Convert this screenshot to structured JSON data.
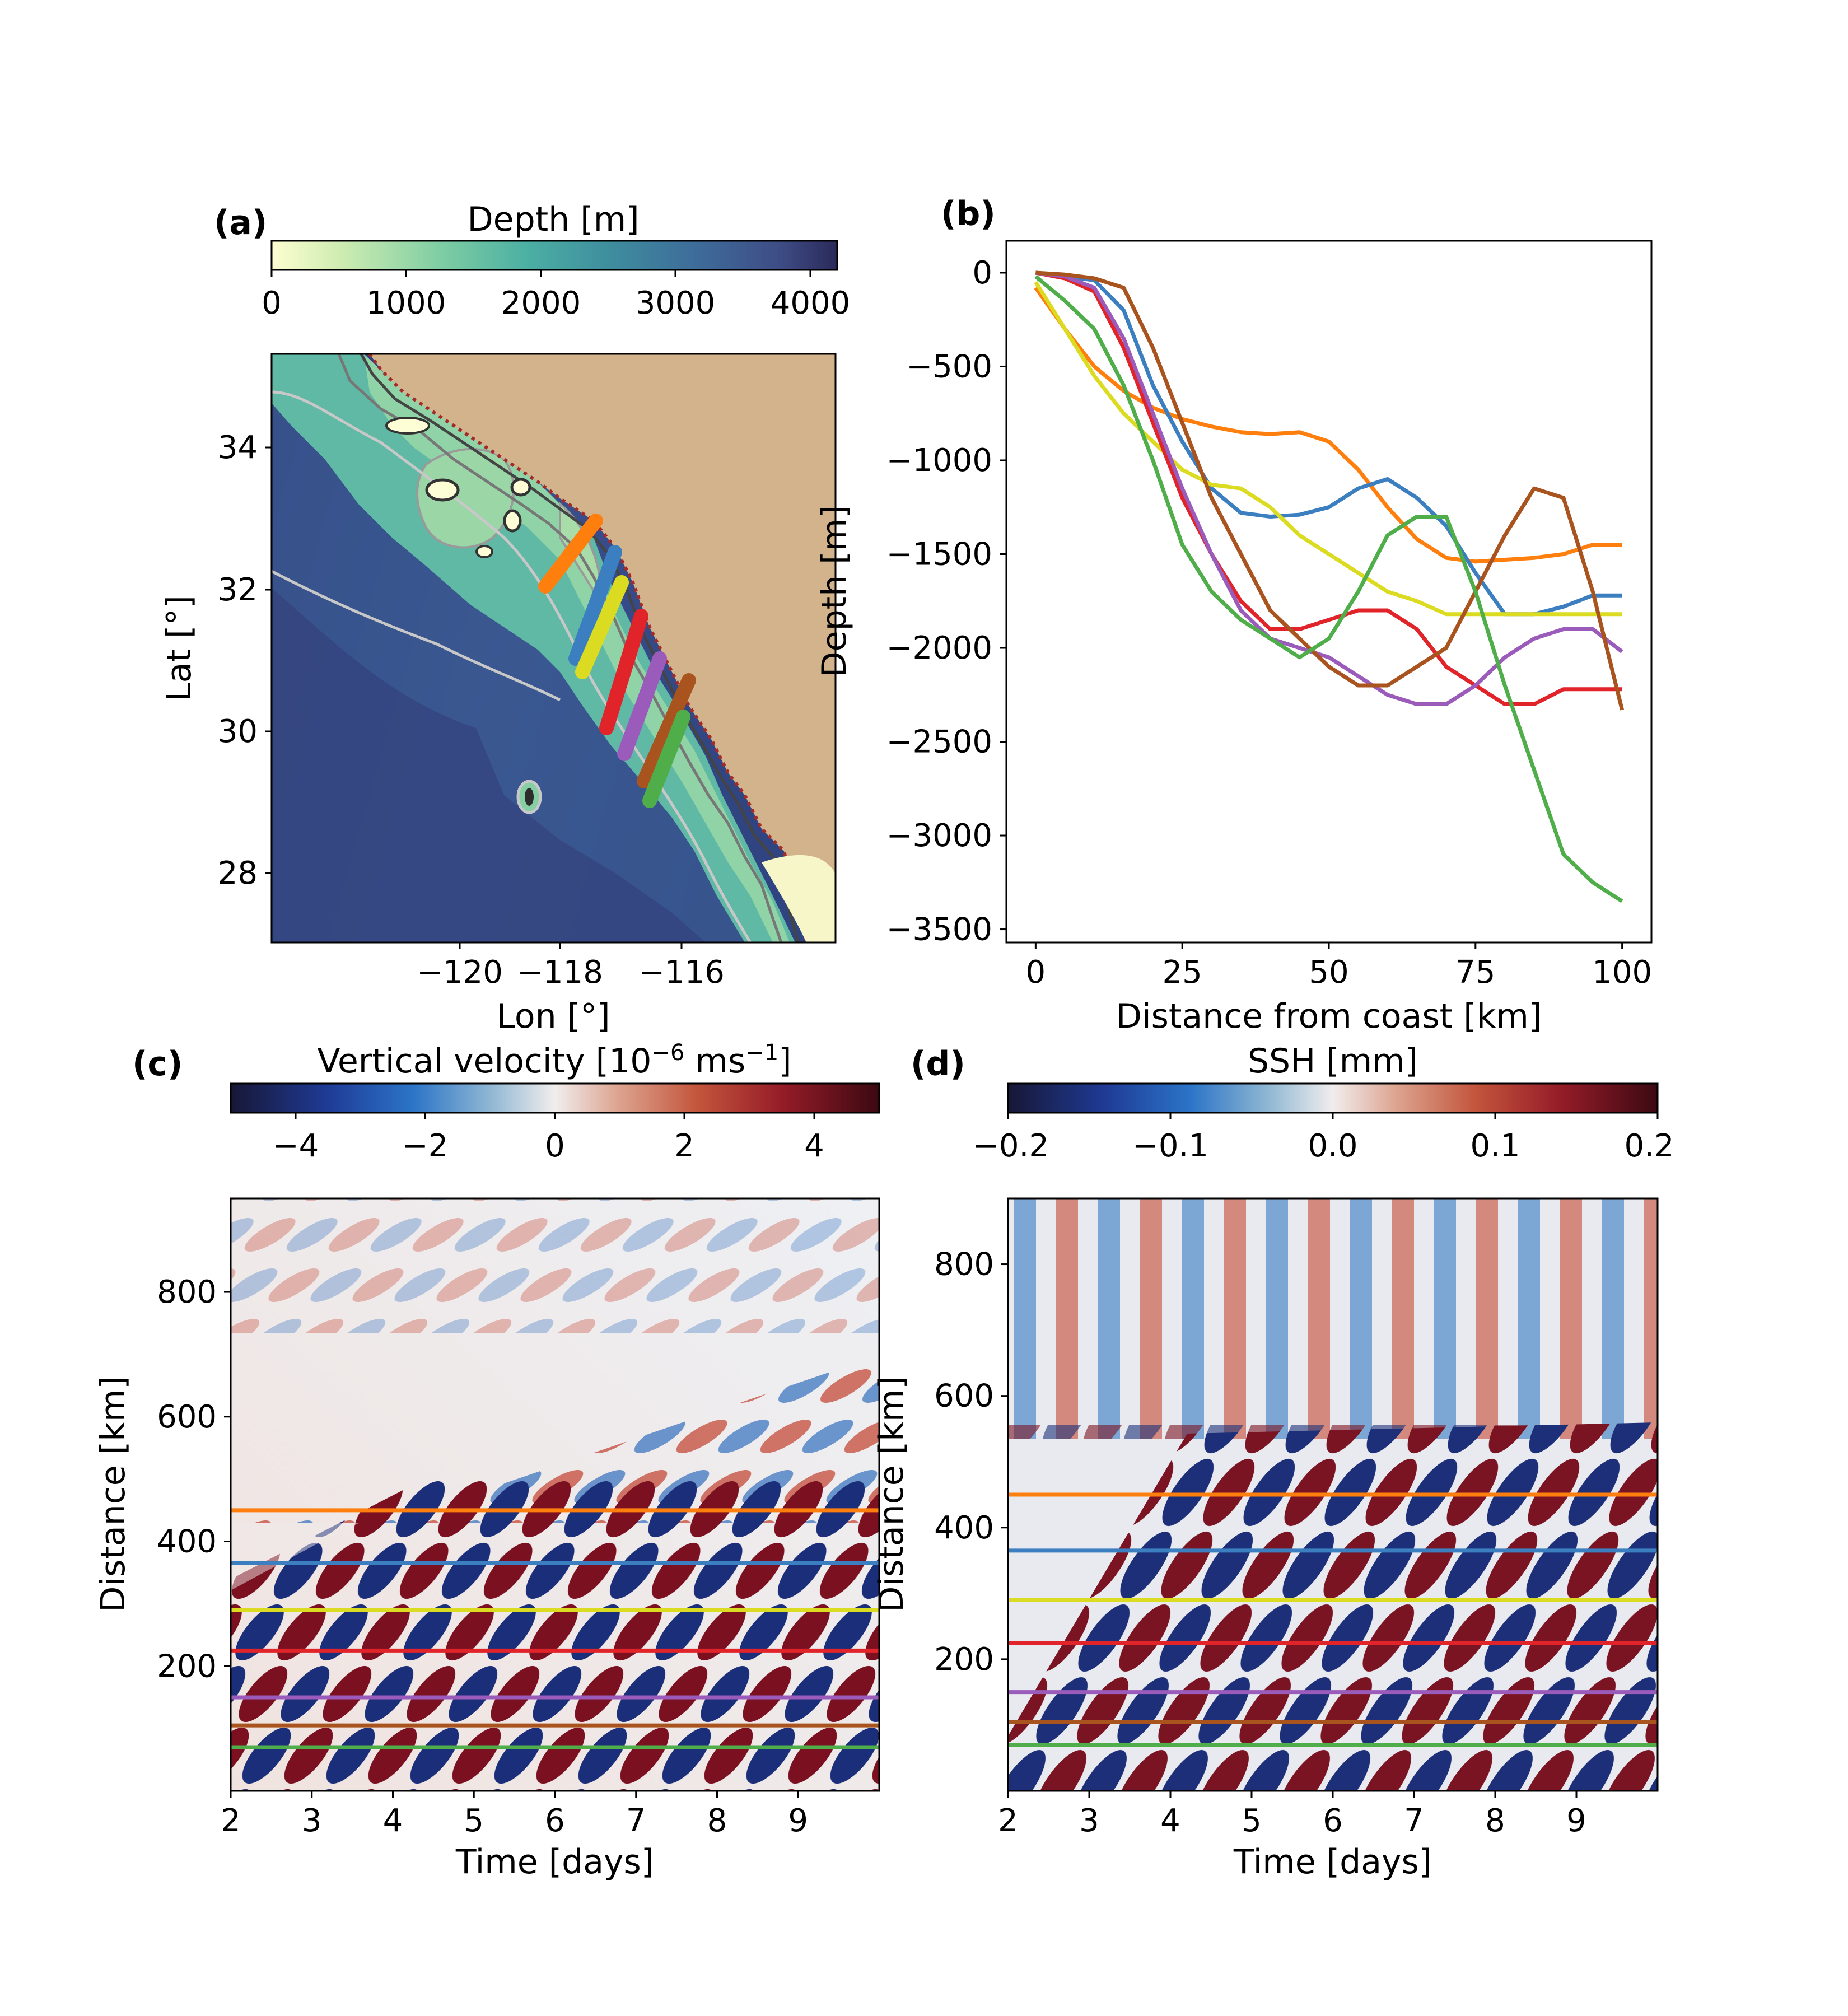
{
  "colors": {
    "line_orange": "#ff7f0e",
    "line_blue": "#3b7fc0",
    "line_yellow": "#dbdb22",
    "line_red": "#e0242a",
    "line_purple": "#9b5bbb",
    "line_brown": "#a9531e",
    "line_green": "#4fae4a",
    "land": "#d3b38c",
    "coast_dotted": "#a52a2a"
  },
  "panels": {
    "a": {
      "label": "(a)",
      "cbar_label": "Depth [m]",
      "cbar_ticks": [
        "0",
        "1000",
        "2000",
        "3000",
        "4000"
      ],
      "xlabel": "Lon [°]",
      "ylabel": "Lat [°]",
      "xticks": [
        "−120",
        "−118",
        "−116"
      ],
      "yticks": [
        "34",
        "32",
        "30",
        "28"
      ]
    },
    "b": {
      "label": "(b)",
      "xlabel": "Distance from coast [km]",
      "ylabel": "Depth [m]",
      "xticks": [
        "0",
        "25",
        "50",
        "75",
        "100"
      ],
      "yticks": [
        "0",
        "−500",
        "−1000",
        "−1500",
        "−2000",
        "−2500",
        "−3000",
        "−3500"
      ]
    },
    "c": {
      "label": "(c)",
      "cbar_label_main": "Vertical velocity  [10",
      "cbar_label_exp1": "−6",
      "cbar_label_mid": " ms",
      "cbar_label_exp2": "−1",
      "cbar_label_end": "]",
      "cbar_ticks": [
        "−4",
        "−2",
        "0",
        "2",
        "4"
      ],
      "xlabel": "Time [days]",
      "ylabel": "Distance [km]",
      "xticks": [
        "2",
        "3",
        "4",
        "5",
        "6",
        "7",
        "8",
        "9"
      ],
      "yticks": [
        "800",
        "600",
        "400",
        "200"
      ]
    },
    "d": {
      "label": "(d)",
      "cbar_label": "SSH  [mm]",
      "cbar_ticks": [
        "−0.2",
        "−0.1",
        "0.0",
        "0.1",
        "0.2"
      ],
      "xlabel": "Time [days]",
      "ylabel": "Distance [km]",
      "xticks": [
        "2",
        "3",
        "4",
        "5",
        "6",
        "7",
        "8",
        "9"
      ],
      "yticks": [
        "800",
        "600",
        "400",
        "200"
      ]
    }
  },
  "chart_data": [
    {
      "panel": "a",
      "type": "heatmap",
      "xlabel": "Lon [°]",
      "ylabel": "Lat [°]",
      "xlim": [
        -122.7,
        -114.7
      ],
      "ylim": [
        27,
        35.3
      ],
      "colorbar": {
        "label": "Depth [m]",
        "range": [
          0,
          4200
        ],
        "colormap": "deep"
      },
      "grid": false,
      "transects": [
        {
          "color": "orange",
          "start": [
            -118.2,
            32.0
          ],
          "end": [
            -117.1,
            33.1
          ]
        },
        {
          "color": "blue",
          "start": [
            -117.7,
            31.0
          ],
          "end": [
            -117.0,
            32.5
          ]
        },
        {
          "color": "yellow",
          "start": [
            -117.5,
            30.8
          ],
          "end": [
            -116.9,
            32.0
          ]
        },
        {
          "color": "red",
          "start": [
            -117.2,
            30.0
          ],
          "end": [
            -116.7,
            31.5
          ]
        },
        {
          "color": "purple",
          "start": [
            -116.9,
            29.7
          ],
          "end": [
            -116.4,
            31.0
          ]
        },
        {
          "color": "brown",
          "start": [
            -116.6,
            29.3
          ],
          "end": [
            -116.0,
            30.7
          ]
        },
        {
          "color": "green",
          "start": [
            -116.5,
            29.0
          ],
          "end": [
            -116.0,
            30.3
          ]
        }
      ]
    },
    {
      "panel": "b",
      "type": "line",
      "xlabel": "Distance from coast [km]",
      "ylabel": "Depth [m]",
      "xlim": [
        -5,
        105
      ],
      "ylim": [
        -3570,
        170
      ],
      "grid": false,
      "series": [
        {
          "color": "orange",
          "x": [
            0,
            5,
            10,
            15,
            20,
            25,
            30,
            35,
            40,
            45,
            50,
            55,
            60,
            65,
            70,
            75,
            80,
            85,
            90,
            95,
            100
          ],
          "y": [
            -80,
            -300,
            -500,
            -630,
            -720,
            -780,
            -820,
            -850,
            -860,
            -850,
            -900,
            -1050,
            -1250,
            -1420,
            -1520,
            -1540,
            -1530,
            -1520,
            -1500,
            -1450,
            -1450
          ]
        },
        {
          "color": "blue",
          "x": [
            0,
            5,
            10,
            15,
            20,
            25,
            30,
            35,
            40,
            45,
            50,
            55,
            60,
            65,
            70,
            75,
            80,
            85,
            90,
            95,
            100
          ],
          "y": [
            0,
            -20,
            -40,
            -200,
            -600,
            -900,
            -1150,
            -1280,
            -1300,
            -1290,
            -1250,
            -1150,
            -1100,
            -1200,
            -1350,
            -1600,
            -1820,
            -1820,
            -1780,
            -1720,
            -1720
          ]
        },
        {
          "color": "yellow",
          "x": [
            0,
            5,
            10,
            15,
            20,
            25,
            30,
            35,
            40,
            45,
            50,
            55,
            60,
            65,
            70,
            75,
            80,
            85,
            90,
            95,
            100
          ],
          "y": [
            -50,
            -300,
            -550,
            -750,
            -900,
            -1050,
            -1130,
            -1150,
            -1250,
            -1400,
            -1500,
            -1600,
            -1700,
            -1750,
            -1820,
            -1820,
            -1820,
            -1820,
            -1820,
            -1820,
            -1820
          ]
        },
        {
          "color": "red",
          "x": [
            0,
            5,
            10,
            15,
            20,
            25,
            30,
            35,
            40,
            45,
            50,
            55,
            60,
            65,
            70,
            75,
            80,
            85,
            90,
            95,
            100
          ],
          "y": [
            0,
            -30,
            -100,
            -400,
            -800,
            -1200,
            -1500,
            -1750,
            -1900,
            -1900,
            -1850,
            -1800,
            -1800,
            -1900,
            -2100,
            -2200,
            -2300,
            -2300,
            -2220,
            -2220,
            -2220
          ]
        },
        {
          "color": "purple",
          "x": [
            0,
            5,
            10,
            15,
            20,
            25,
            30,
            35,
            40,
            45,
            50,
            55,
            60,
            65,
            70,
            75,
            80,
            85,
            90,
            95,
            100
          ],
          "y": [
            0,
            -20,
            -80,
            -350,
            -750,
            -1150,
            -1500,
            -1800,
            -1950,
            -2000,
            -2050,
            -2150,
            -2250,
            -2300,
            -2300,
            -2200,
            -2050,
            -1950,
            -1900,
            -1900,
            -2020
          ]
        },
        {
          "color": "brown",
          "x": [
            0,
            5,
            10,
            15,
            20,
            25,
            30,
            35,
            40,
            45,
            50,
            55,
            60,
            65,
            70,
            75,
            80,
            85,
            90,
            95,
            100
          ],
          "y": [
            0,
            -10,
            -30,
            -80,
            -400,
            -800,
            -1200,
            -1500,
            -1800,
            -1950,
            -2100,
            -2200,
            -2200,
            -2100,
            -2000,
            -1700,
            -1400,
            -1150,
            -1200,
            -1700,
            -2330
          ]
        },
        {
          "color": "green",
          "x": [
            0,
            5,
            10,
            15,
            20,
            25,
            30,
            35,
            40,
            45,
            50,
            55,
            60,
            65,
            70,
            75,
            80,
            85,
            90,
            95,
            100
          ],
          "y": [
            -20,
            -150,
            -300,
            -600,
            -1000,
            -1450,
            -1700,
            -1850,
            -1950,
            -2050,
            -1950,
            -1700,
            -1400,
            -1300,
            -1300,
            -1700,
            -2200,
            -2650,
            -3100,
            -3250,
            -3350
          ]
        }
      ]
    },
    {
      "panel": "c",
      "type": "heatmap",
      "xlabel": "Time [days]",
      "ylabel": "Distance [km]",
      "xlim": [
        2,
        10
      ],
      "ylim": [
        0,
        950
      ],
      "colorbar": {
        "label": "Vertical velocity [10^-6 ms^-1]",
        "range": [
          -5,
          5
        ]
      },
      "grid": false,
      "horizontal_lines": [
        {
          "color": "orange",
          "y": 450
        },
        {
          "color": "blue",
          "y": 365
        },
        {
          "color": "yellow",
          "y": 290
        },
        {
          "color": "red",
          "y": 225
        },
        {
          "color": "purple",
          "y": 150
        },
        {
          "color": "brown",
          "y": 105
        },
        {
          "color": "green",
          "y": 70
        }
      ]
    },
    {
      "panel": "d",
      "type": "heatmap",
      "xlabel": "Time [days]",
      "ylabel": "Distance [km]",
      "xlim": [
        2,
        10
      ],
      "ylim": [
        0,
        900
      ],
      "colorbar": {
        "label": "SSH [mm]",
        "range": [
          -0.2,
          0.2
        ]
      },
      "grid": false,
      "horizontal_lines": [
        {
          "color": "orange",
          "y": 450
        },
        {
          "color": "blue",
          "y": 365
        },
        {
          "color": "yellow",
          "y": 290
        },
        {
          "color": "red",
          "y": 225
        },
        {
          "color": "purple",
          "y": 150
        },
        {
          "color": "brown",
          "y": 105
        },
        {
          "color": "green",
          "y": 70
        }
      ]
    }
  ]
}
